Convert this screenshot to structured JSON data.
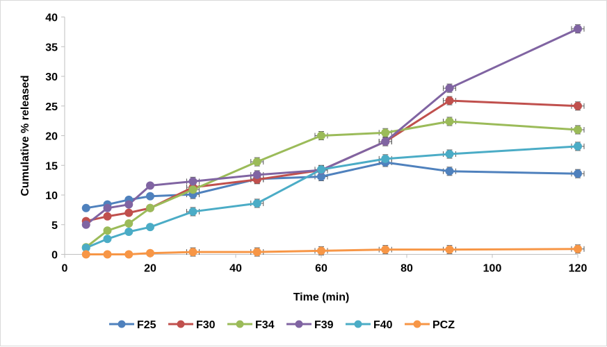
{
  "chart_data": {
    "type": "line",
    "title": "",
    "xlabel": "Time (min)",
    "ylabel": "Cumulative % released",
    "xlim": [
      0,
      120
    ],
    "ylim": [
      0,
      40
    ],
    "xticks": [
      0,
      20,
      40,
      60,
      80,
      100,
      120
    ],
    "yticks": [
      0,
      5,
      10,
      15,
      20,
      25,
      30,
      35,
      40
    ],
    "grid": false,
    "legend_position": "bottom",
    "x": [
      5,
      10,
      15,
      20,
      30,
      45,
      60,
      75,
      90,
      120
    ],
    "series": [
      {
        "name": "F25",
        "color": "#4f81bd",
        "values": [
          7.8,
          8.4,
          9.2,
          9.8,
          10.1,
          12.7,
          13.1,
          15.5,
          14.0,
          13.6
        ]
      },
      {
        "name": "F30",
        "color": "#c0504d",
        "values": [
          5.6,
          6.4,
          7.0,
          7.8,
          11.3,
          12.6,
          14.2,
          19.0,
          25.9,
          25.0
        ]
      },
      {
        "name": "F34",
        "color": "#9bbb59",
        "values": [
          1.2,
          4.0,
          5.2,
          7.8,
          10.9,
          15.6,
          20.0,
          20.5,
          22.4,
          21.0
        ]
      },
      {
        "name": "F39",
        "color": "#8064a2",
        "values": [
          5.0,
          7.8,
          8.4,
          11.6,
          12.3,
          13.4,
          14.2,
          19.0,
          28.0,
          38.0
        ]
      },
      {
        "name": "F40",
        "color": "#4bacc6",
        "values": [
          1.1,
          2.6,
          3.8,
          4.6,
          7.2,
          8.6,
          14.3,
          16.1,
          16.9,
          18.2
        ]
      },
      {
        "name": "PCZ",
        "color": "#f79646",
        "values": [
          0.0,
          0.0,
          0.0,
          0.2,
          0.4,
          0.4,
          0.6,
          0.8,
          0.8,
          0.9
        ]
      }
    ]
  }
}
